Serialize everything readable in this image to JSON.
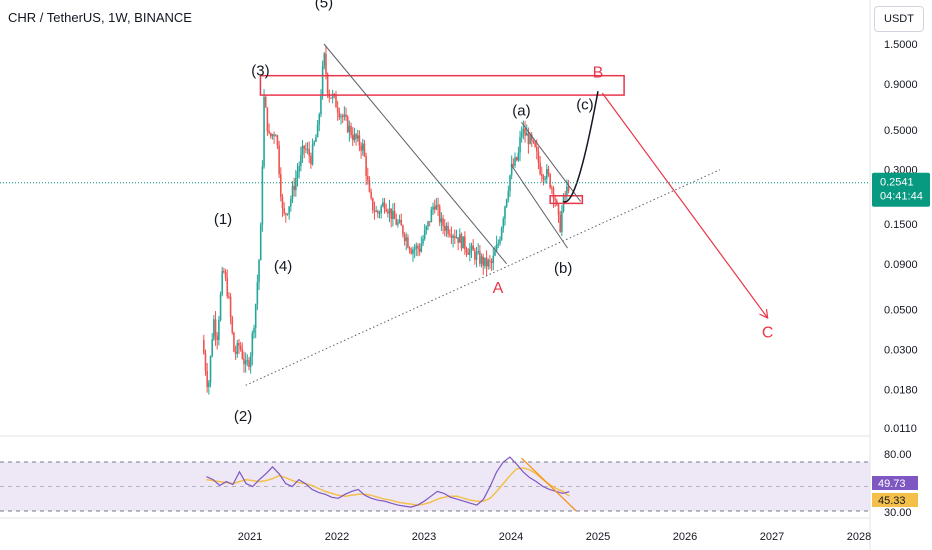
{
  "header": {
    "title": "CHR / TetherUS, 1W, BINANCE",
    "currency_button": "USDT"
  },
  "colors": {
    "up": "#26a69a",
    "down": "#ef5350",
    "annotation": "#e8364a",
    "trend": "#131722",
    "rsi_line": "#7e57c2",
    "rsi_ma": "#f5c04a",
    "rsi_band": "#ede7f6",
    "last_price": "#089981"
  },
  "chart_data": [
    {
      "type": "candlestick",
      "scale": "log",
      "y_ticks": [
        "1.5000",
        "0.9000",
        "0.5000",
        "0.3000",
        "0.1500",
        "0.0900",
        "0.0500",
        "0.0300",
        "0.0180",
        "0.0110"
      ],
      "x_ticks": [
        "2021",
        "2022",
        "2023",
        "2024",
        "2025",
        "2026",
        "2027",
        "2028"
      ],
      "last_price": {
        "value": "0.2541",
        "countdown": "04:41:44",
        "numeric": 0.2541
      },
      "price_path": [
        {
          "t": 2020.45,
          "p": 0.034
        },
        {
          "t": 2020.52,
          "p": 0.018
        },
        {
          "t": 2020.58,
          "p": 0.045
        },
        {
          "t": 2020.62,
          "p": 0.035
        },
        {
          "t": 2020.69,
          "p": 0.085
        },
        {
          "t": 2020.75,
          "p": 0.06
        },
        {
          "t": 2020.82,
          "p": 0.028
        },
        {
          "t": 2020.88,
          "p": 0.032
        },
        {
          "t": 2020.95,
          "p": 0.024
        },
        {
          "t": 2021.0,
          "p": 0.027
        },
        {
          "t": 2021.06,
          "p": 0.05
        },
        {
          "t": 2021.12,
          "p": 0.12
        },
        {
          "t": 2021.16,
          "p": 0.75
        },
        {
          "t": 2021.22,
          "p": 0.45
        },
        {
          "t": 2021.3,
          "p": 0.5
        },
        {
          "t": 2021.38,
          "p": 0.16
        },
        {
          "t": 2021.46,
          "p": 0.2
        },
        {
          "t": 2021.55,
          "p": 0.3
        },
        {
          "t": 2021.62,
          "p": 0.4
        },
        {
          "t": 2021.7,
          "p": 0.35
        },
        {
          "t": 2021.78,
          "p": 0.5
        },
        {
          "t": 2021.85,
          "p": 1.3
        },
        {
          "t": 2021.9,
          "p": 0.8
        },
        {
          "t": 2021.96,
          "p": 0.75
        },
        {
          "t": 2022.02,
          "p": 0.65
        },
        {
          "t": 2022.1,
          "p": 0.55
        },
        {
          "t": 2022.2,
          "p": 0.45
        },
        {
          "t": 2022.3,
          "p": 0.4
        },
        {
          "t": 2022.38,
          "p": 0.2
        },
        {
          "t": 2022.46,
          "p": 0.17
        },
        {
          "t": 2022.55,
          "p": 0.2
        },
        {
          "t": 2022.65,
          "p": 0.16
        },
        {
          "t": 2022.75,
          "p": 0.14
        },
        {
          "t": 2022.85,
          "p": 0.11
        },
        {
          "t": 2022.95,
          "p": 0.11
        },
        {
          "t": 2023.05,
          "p": 0.15
        },
        {
          "t": 2023.12,
          "p": 0.2
        },
        {
          "t": 2023.2,
          "p": 0.15
        },
        {
          "t": 2023.3,
          "p": 0.14
        },
        {
          "t": 2023.4,
          "p": 0.125
        },
        {
          "t": 2023.5,
          "p": 0.11
        },
        {
          "t": 2023.6,
          "p": 0.1
        },
        {
          "t": 2023.7,
          "p": 0.09
        },
        {
          "t": 2023.78,
          "p": 0.09
        },
        {
          "t": 2023.86,
          "p": 0.12
        },
        {
          "t": 2023.92,
          "p": 0.18
        },
        {
          "t": 2024.0,
          "p": 0.3
        },
        {
          "t": 2024.08,
          "p": 0.35
        },
        {
          "t": 2024.12,
          "p": 0.5
        },
        {
          "t": 2024.2,
          "p": 0.45
        },
        {
          "t": 2024.28,
          "p": 0.38
        },
        {
          "t": 2024.34,
          "p": 0.3
        },
        {
          "t": 2024.42,
          "p": 0.28
        },
        {
          "t": 2024.5,
          "p": 0.22
        },
        {
          "t": 2024.56,
          "p": 0.14
        },
        {
          "t": 2024.6,
          "p": 0.2
        },
        {
          "t": 2024.67,
          "p": 0.2541
        }
      ],
      "wave_labels": [
        {
          "text": "(1)",
          "t": 2020.69,
          "p": 0.15
        },
        {
          "text": "(2)",
          "t": 2020.92,
          "p": 0.012
        },
        {
          "text": "(3)",
          "t": 2021.12,
          "p": 1.0
        },
        {
          "text": "(4)",
          "t": 2021.38,
          "p": 0.082
        },
        {
          "text": "(5)",
          "t": 2021.85,
          "p": 2.4
        },
        {
          "text": "(a)",
          "t": 2024.12,
          "p": 0.6
        },
        {
          "text": "(b)",
          "t": 2024.6,
          "p": 0.08
        },
        {
          "text": "(c)",
          "t": 2024.85,
          "p": 0.65
        }
      ],
      "abc_labels": [
        {
          "text": "A",
          "t": 2023.85,
          "p": 0.062
        },
        {
          "text": "B",
          "t": 2025.0,
          "p": 0.98
        },
        {
          "text": "C",
          "t": 2026.95,
          "p": 0.035
        }
      ],
      "resistance_box": {
        "t1": 2021.12,
        "t2": 2025.3,
        "p_top": 1.0,
        "p_bottom": 0.78
      },
      "support_box": {
        "t1": 2024.45,
        "t2": 2024.82,
        "p_top": 0.215,
        "p_bottom": 0.195
      },
      "downtrend_line": {
        "t1": 2021.85,
        "p1": 1.5,
        "t2": 2023.95,
        "p2": 0.09
      },
      "wedge_upper": {
        "t1": 2024.12,
        "p1": 0.55,
        "t2": 2024.8,
        "p2": 0.2
      },
      "wedge_lower": {
        "t1": 2024.0,
        "p1": 0.32,
        "t2": 2024.65,
        "p2": 0.11
      },
      "support_line": {
        "t1": 2020.95,
        "p1": 0.019,
        "t2": 2026.4,
        "p2": 0.3
      },
      "projection_c": [
        {
          "t": 2024.6,
          "p": 0.2
        },
        {
          "t": 2024.75,
          "p": 0.3
        },
        {
          "t": 2025.0,
          "p": 0.82
        }
      ],
      "target_arrow": {
        "t1": 2025.05,
        "p1": 0.8,
        "t2": 2026.95,
        "p2": 0.045
      }
    },
    {
      "type": "line",
      "indicator": "RSI",
      "y_ticks": [
        "80.00",
        "30.00"
      ],
      "value_labels": [
        "49.73",
        "45.33"
      ],
      "rsi_values": [
        65,
        62,
        56,
        60,
        57,
        70,
        58,
        55,
        62,
        68,
        75,
        68,
        58,
        55,
        62,
        58,
        52,
        49,
        47,
        44,
        43,
        47,
        50,
        52,
        46,
        43,
        41,
        40,
        38,
        36,
        35,
        34,
        36,
        40,
        45,
        50,
        48,
        44,
        42,
        40,
        38,
        36,
        42,
        55,
        70,
        80,
        85,
        78,
        70,
        64,
        60,
        55,
        52,
        50,
        48,
        49.73
      ],
      "rsi_ma_values": [
        62,
        61,
        60,
        59,
        58,
        60,
        62,
        61,
        60,
        61,
        63,
        66,
        64,
        61,
        59,
        58,
        56,
        53,
        50,
        48,
        46,
        45,
        46,
        47,
        47,
        46,
        44,
        42,
        41,
        39,
        38,
        37,
        36,
        37,
        39,
        42,
        44,
        45,
        45,
        43,
        41,
        40,
        40,
        43,
        50,
        58,
        66,
        73,
        74,
        72,
        68,
        62,
        57,
        53,
        50,
        45.33
      ],
      "rsi_t_start": 2020.5,
      "rsi_t_end": 2024.67,
      "rsi_trendline": {
        "t1": 2024.12,
        "v1": 84,
        "t2": 2024.75,
        "v2": 30
      }
    }
  ]
}
